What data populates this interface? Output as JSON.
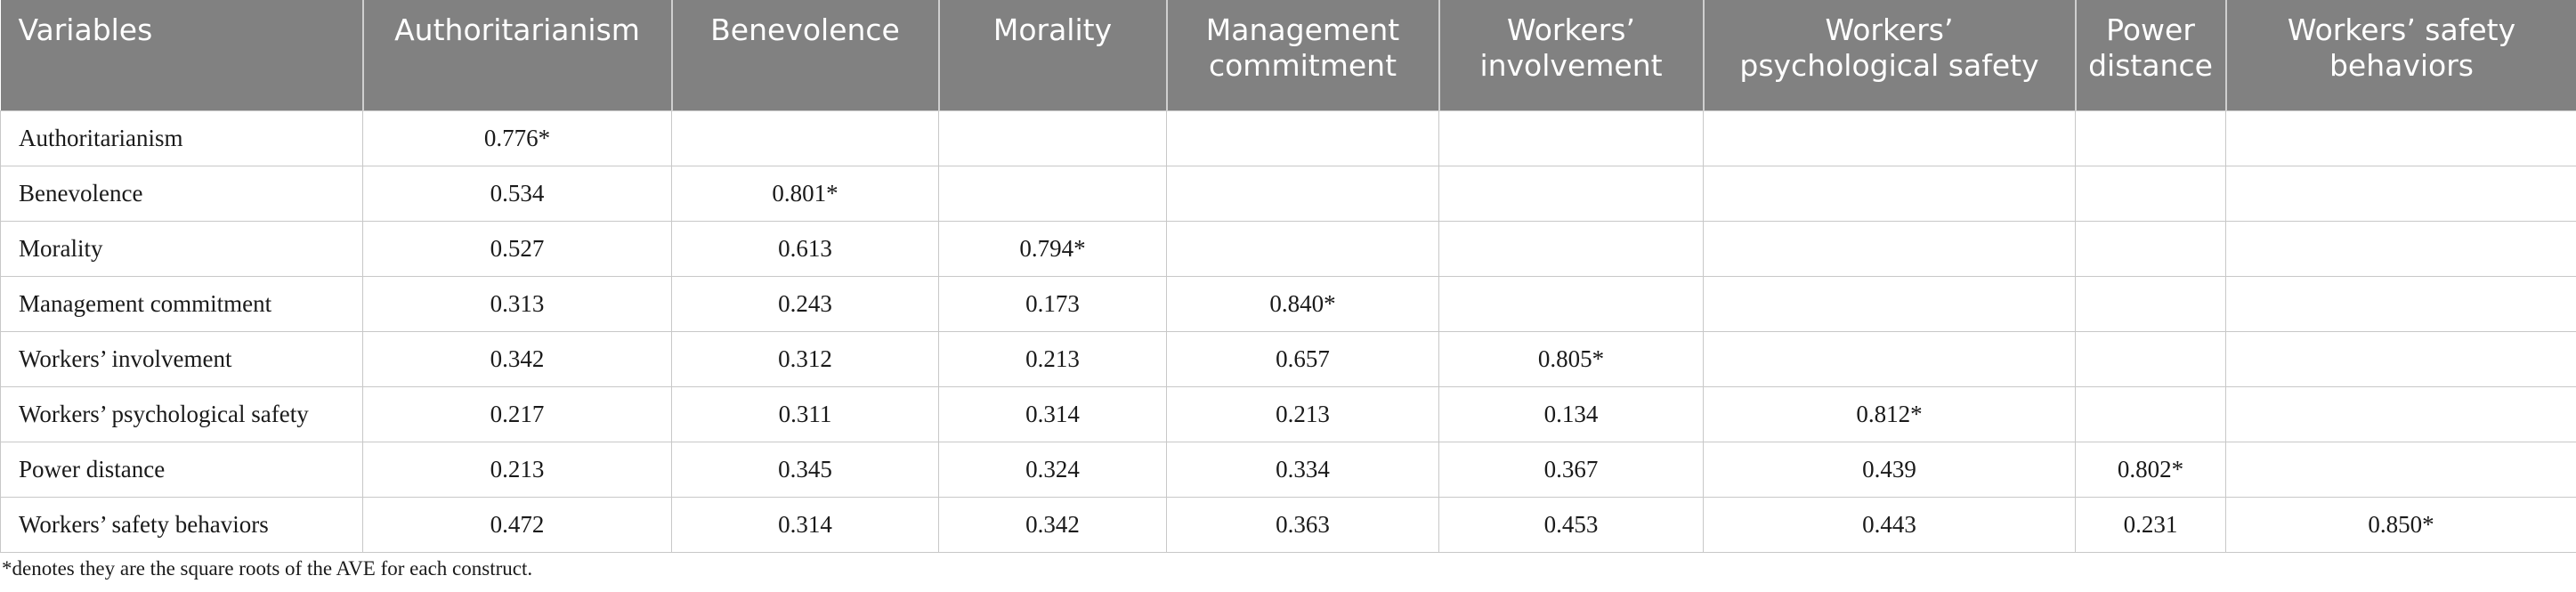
{
  "table": {
    "headers": [
      [
        "Variables"
      ],
      [
        "Authoritarianism"
      ],
      [
        "Benevolence"
      ],
      [
        "Morality"
      ],
      [
        "Management",
        "commitment"
      ],
      [
        "Workers’",
        "involvement"
      ],
      [
        "Workers’",
        "psychological safety"
      ],
      [
        "Power",
        "distance"
      ],
      [
        "Workers’ safety",
        "behaviors"
      ]
    ],
    "rows": [
      [
        "Authoritarianism",
        "0.776*",
        "",
        "",
        "",
        "",
        "",
        "",
        ""
      ],
      [
        "Benevolence",
        "0.534",
        "0.801*",
        "",
        "",
        "",
        "",
        "",
        ""
      ],
      [
        "Morality",
        "0.527",
        "0.613",
        "0.794*",
        "",
        "",
        "",
        "",
        ""
      ],
      [
        "Management commitment",
        "0.313",
        "0.243",
        "0.173",
        "0.840*",
        "",
        "",
        "",
        ""
      ],
      [
        "Workers’ involvement",
        "0.342",
        "0.312",
        "0.213",
        "0.657",
        "0.805*",
        "",
        "",
        ""
      ],
      [
        "Workers’ psychological safety",
        "0.217",
        "0.311",
        "0.314",
        "0.213",
        "0.134",
        "0.812*",
        "",
        ""
      ],
      [
        "Power distance",
        "0.213",
        "0.345",
        "0.324",
        "0.334",
        "0.367",
        "0.439",
        "0.802*",
        ""
      ],
      [
        "Workers’ safety behaviors",
        "0.472",
        "0.314",
        "0.342",
        "0.363",
        "0.453",
        "0.443",
        "0.231",
        "0.850*"
      ]
    ]
  },
  "footnote": "*denotes they are the square roots of the AVE for each construct."
}
